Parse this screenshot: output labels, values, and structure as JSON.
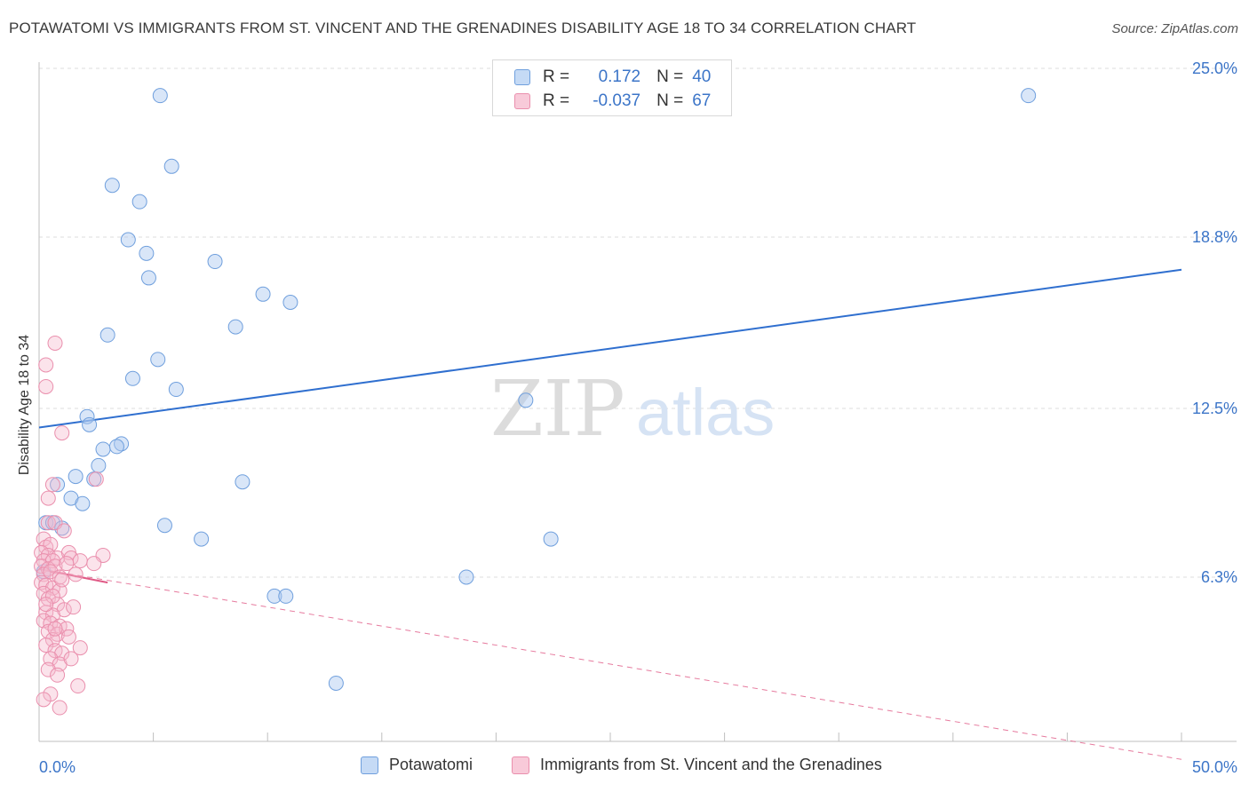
{
  "title": "POTAWATOMI VS IMMIGRANTS FROM ST. VINCENT AND THE GRENADINES DISABILITY AGE 18 TO 34 CORRELATION CHART",
  "source": "Source: ZipAtlas.com",
  "watermark": {
    "zip": "ZIP",
    "atlas": "atlas"
  },
  "legend": {
    "r_label": "R =",
    "n_label": "N =",
    "series": [
      {
        "r": "0.172",
        "n": "40"
      },
      {
        "r": "-0.037",
        "n": "67"
      }
    ]
  },
  "colors": {
    "blue_fill": "#aac8f0",
    "blue_stroke": "#6f9fdd",
    "blue_line": "#2f6fcf",
    "pink_fill": "#f6b9cc",
    "pink_stroke": "#ea8fad",
    "pink_line": "#e05a86",
    "tick_label": "#3c75c8"
  },
  "chart_data": {
    "type": "scatter",
    "xlabel": "",
    "ylabel": "Disability Age 18 to 34",
    "xlim": [
      0,
      50
    ],
    "ylim": [
      0,
      25
    ],
    "x_tick_labels": [
      "0.0%",
      "50.0%"
    ],
    "y_ticks": [
      6.3,
      12.5,
      18.8,
      25.0
    ],
    "y_tick_labels": [
      "6.3%",
      "12.5%",
      "18.8%",
      "25.0%"
    ],
    "grid": true,
    "legend_position": "bottom",
    "series": [
      {
        "name": "Potawatomi",
        "color": "blue",
        "r": 0.172,
        "n": 40,
        "trend": {
          "x": [
            0,
            50
          ],
          "y": [
            11.8,
            17.6
          ]
        },
        "points": [
          [
            5.3,
            24.0
          ],
          [
            43.3,
            24.0
          ],
          [
            5.8,
            21.4
          ],
          [
            3.2,
            20.7
          ],
          [
            4.4,
            20.1
          ],
          [
            3.9,
            18.7
          ],
          [
            4.7,
            18.2
          ],
          [
            7.7,
            17.9
          ],
          [
            4.8,
            17.3
          ],
          [
            9.8,
            16.7
          ],
          [
            11.0,
            16.4
          ],
          [
            8.6,
            15.5
          ],
          [
            3.0,
            15.2
          ],
          [
            5.2,
            14.3
          ],
          [
            4.1,
            13.6
          ],
          [
            6.0,
            13.2
          ],
          [
            21.3,
            12.8
          ],
          [
            2.1,
            12.2
          ],
          [
            2.2,
            11.9
          ],
          [
            3.6,
            11.2
          ],
          [
            2.8,
            11.0
          ],
          [
            3.4,
            11.1
          ],
          [
            2.6,
            10.4
          ],
          [
            1.6,
            10.0
          ],
          [
            2.4,
            9.9
          ],
          [
            0.8,
            9.7
          ],
          [
            8.9,
            9.8
          ],
          [
            1.4,
            9.2
          ],
          [
            1.9,
            9.0
          ],
          [
            0.3,
            8.3
          ],
          [
            0.6,
            8.3
          ],
          [
            1.0,
            8.1
          ],
          [
            5.5,
            8.2
          ],
          [
            7.1,
            7.7
          ],
          [
            22.4,
            7.7
          ],
          [
            18.7,
            6.3
          ],
          [
            10.3,
            5.6
          ],
          [
            10.8,
            5.6
          ],
          [
            13.0,
            2.4
          ],
          [
            0.2,
            6.5
          ]
        ]
      },
      {
        "name": "Immigrants from St. Vincent and the Grenadines",
        "color": "pink",
        "r": -0.037,
        "n": 67,
        "trend": {
          "x": [
            0,
            3
          ],
          "y": [
            6.6,
            6.1
          ]
        },
        "trend_extended": {
          "x": [
            0,
            50
          ],
          "y": [
            6.6,
            -0.4
          ]
        },
        "points": [
          [
            0.7,
            14.9
          ],
          [
            0.3,
            14.1
          ],
          [
            0.3,
            13.3
          ],
          [
            1.0,
            11.6
          ],
          [
            2.5,
            9.9
          ],
          [
            0.6,
            9.7
          ],
          [
            0.4,
            9.2
          ],
          [
            0.4,
            8.3
          ],
          [
            0.7,
            8.3
          ],
          [
            1.1,
            8.0
          ],
          [
            0.2,
            7.7
          ],
          [
            0.3,
            7.4
          ],
          [
            0.5,
            7.5
          ],
          [
            0.1,
            7.2
          ],
          [
            0.4,
            7.1
          ],
          [
            0.8,
            7.0
          ],
          [
            1.3,
            7.2
          ],
          [
            0.2,
            6.9
          ],
          [
            0.6,
            6.9
          ],
          [
            1.4,
            7.0
          ],
          [
            0.1,
            6.7
          ],
          [
            0.4,
            6.6
          ],
          [
            0.7,
            6.7
          ],
          [
            1.2,
            6.8
          ],
          [
            2.8,
            7.1
          ],
          [
            0.2,
            6.4
          ],
          [
            0.5,
            6.5
          ],
          [
            0.9,
            6.3
          ],
          [
            1.6,
            6.4
          ],
          [
            2.4,
            6.8
          ],
          [
            0.1,
            6.1
          ],
          [
            0.3,
            6.0
          ],
          [
            0.6,
            5.9
          ],
          [
            0.9,
            5.8
          ],
          [
            1.8,
            6.9
          ],
          [
            0.2,
            5.7
          ],
          [
            0.4,
            5.5
          ],
          [
            0.8,
            5.3
          ],
          [
            1.1,
            5.1
          ],
          [
            0.3,
            5.0
          ],
          [
            0.6,
            4.9
          ],
          [
            0.2,
            4.7
          ],
          [
            0.5,
            4.6
          ],
          [
            0.9,
            4.5
          ],
          [
            1.5,
            5.2
          ],
          [
            0.4,
            4.3
          ],
          [
            0.8,
            4.2
          ],
          [
            1.2,
            4.4
          ],
          [
            0.6,
            4.0
          ],
          [
            1.3,
            4.1
          ],
          [
            0.3,
            3.8
          ],
          [
            0.7,
            3.6
          ],
          [
            1.0,
            3.5
          ],
          [
            1.8,
            3.7
          ],
          [
            0.5,
            3.3
          ],
          [
            0.9,
            3.1
          ],
          [
            1.4,
            3.3
          ],
          [
            0.4,
            2.9
          ],
          [
            0.8,
            2.7
          ],
          [
            1.7,
            2.3
          ],
          [
            0.5,
            2.0
          ],
          [
            0.9,
            1.5
          ],
          [
            0.2,
            1.8
          ],
          [
            0.6,
            5.6
          ],
          [
            1.0,
            6.2
          ],
          [
            0.3,
            5.3
          ],
          [
            0.7,
            4.4
          ]
        ]
      }
    ]
  }
}
